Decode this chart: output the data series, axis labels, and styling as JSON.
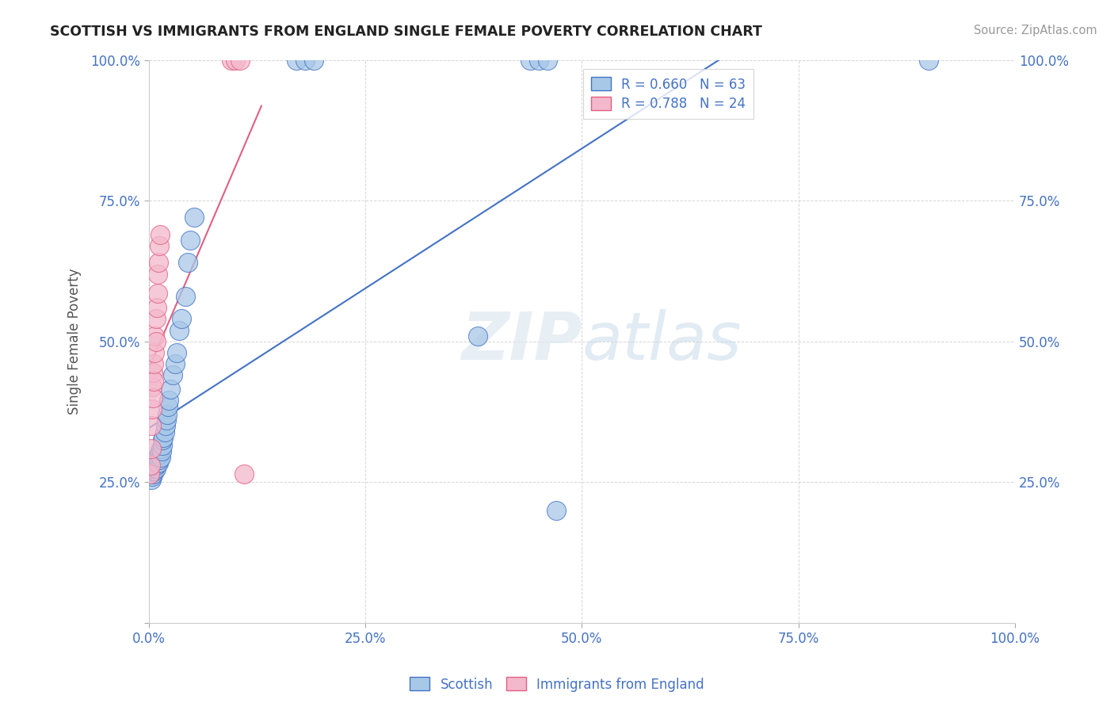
{
  "title": "SCOTTISH VS IMMIGRANTS FROM ENGLAND SINGLE FEMALE POVERTY CORRELATION CHART",
  "source": "Source: ZipAtlas.com",
  "ylabel": "Single Female Poverty",
  "xlim": [
    0.0,
    1.0
  ],
  "ylim": [
    0.0,
    1.0
  ],
  "scottish_R": 0.66,
  "scottish_N": 63,
  "england_R": 0.788,
  "england_N": 24,
  "scottish_color": "#a8c8e8",
  "england_color": "#f4b8cc",
  "line_scottish_color": "#4472c4",
  "line_england_color": "#e06080",
  "legend_text_color": "#4472c4",
  "tick_color": "#4472c4",
  "background_color": "#ffffff",
  "grid_color": "#cccccc",
  "scottish_x": [
    0.002,
    0.003,
    0.003,
    0.003,
    0.004,
    0.004,
    0.004,
    0.005,
    0.005,
    0.005,
    0.005,
    0.006,
    0.006,
    0.006,
    0.006,
    0.007,
    0.007,
    0.007,
    0.007,
    0.008,
    0.008,
    0.008,
    0.009,
    0.009,
    0.01,
    0.01,
    0.01,
    0.011,
    0.011,
    0.012,
    0.012,
    0.013,
    0.014,
    0.014,
    0.015,
    0.016,
    0.016,
    0.017,
    0.018,
    0.019,
    0.02,
    0.021,
    0.022,
    0.023,
    0.025,
    0.028,
    0.03,
    0.032,
    0.035,
    0.038,
    0.042,
    0.045,
    0.048,
    0.052,
    0.38,
    0.17,
    0.18,
    0.19,
    0.44,
    0.45,
    0.46,
    0.9,
    0.47
  ],
  "scottish_y": [
    0.27,
    0.255,
    0.265,
    0.28,
    0.26,
    0.27,
    0.275,
    0.265,
    0.27,
    0.275,
    0.28,
    0.27,
    0.275,
    0.28,
    0.285,
    0.27,
    0.275,
    0.28,
    0.29,
    0.275,
    0.28,
    0.29,
    0.285,
    0.295,
    0.285,
    0.29,
    0.295,
    0.285,
    0.295,
    0.29,
    0.3,
    0.305,
    0.295,
    0.31,
    0.305,
    0.315,
    0.325,
    0.33,
    0.34,
    0.35,
    0.36,
    0.37,
    0.385,
    0.395,
    0.415,
    0.44,
    0.46,
    0.48,
    0.52,
    0.54,
    0.58,
    0.64,
    0.68,
    0.72,
    0.51,
    1.0,
    1.0,
    1.0,
    1.0,
    1.0,
    1.0,
    1.0,
    0.2
  ],
  "england_x": [
    0.001,
    0.002,
    0.003,
    0.003,
    0.004,
    0.004,
    0.005,
    0.005,
    0.006,
    0.006,
    0.007,
    0.007,
    0.008,
    0.008,
    0.009,
    0.01,
    0.01,
    0.011,
    0.012,
    0.013,
    0.095,
    0.1,
    0.105,
    0.11
  ],
  "england_y": [
    0.265,
    0.28,
    0.31,
    0.35,
    0.38,
    0.42,
    0.4,
    0.445,
    0.43,
    0.46,
    0.48,
    0.51,
    0.5,
    0.54,
    0.56,
    0.585,
    0.62,
    0.64,
    0.67,
    0.69,
    1.0,
    1.0,
    1.0,
    0.265
  ]
}
